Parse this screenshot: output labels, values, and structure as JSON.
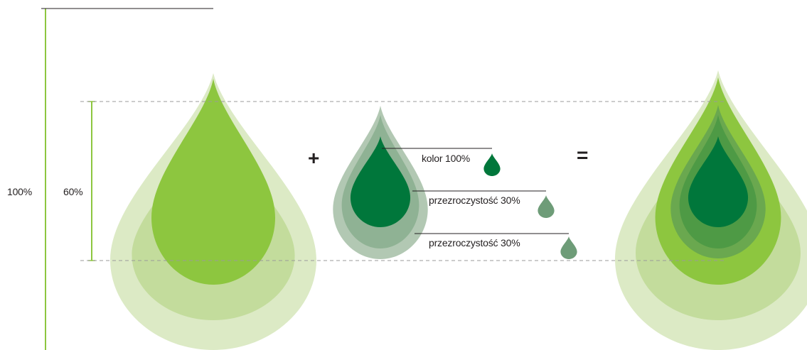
{
  "scale": {
    "full_label": "100%",
    "inner_label": "60%"
  },
  "operators": {
    "plus": "+",
    "equals": "="
  },
  "legend": {
    "items": [
      {
        "label": "kolor 100%",
        "color": "#00773b"
      },
      {
        "label": "przezroczystość 30%",
        "color": "#6e9c78"
      },
      {
        "label": "przezroczystość 30%",
        "color": "#6e9c78"
      }
    ]
  },
  "colors": {
    "scale_line": "#8dc63f",
    "guide_dash": "#9a9a9a",
    "light_layer": "#dceac5",
    "mid_layer": "#c3dc9c",
    "bright_green": "#8dc63f",
    "dark_green": "#00773b",
    "translucent_outer": "#b2c8b3",
    "translucent_mid": "#8fb294",
    "result_mid_1": "#6aa84f",
    "result_mid_2": "#4e9a45"
  }
}
